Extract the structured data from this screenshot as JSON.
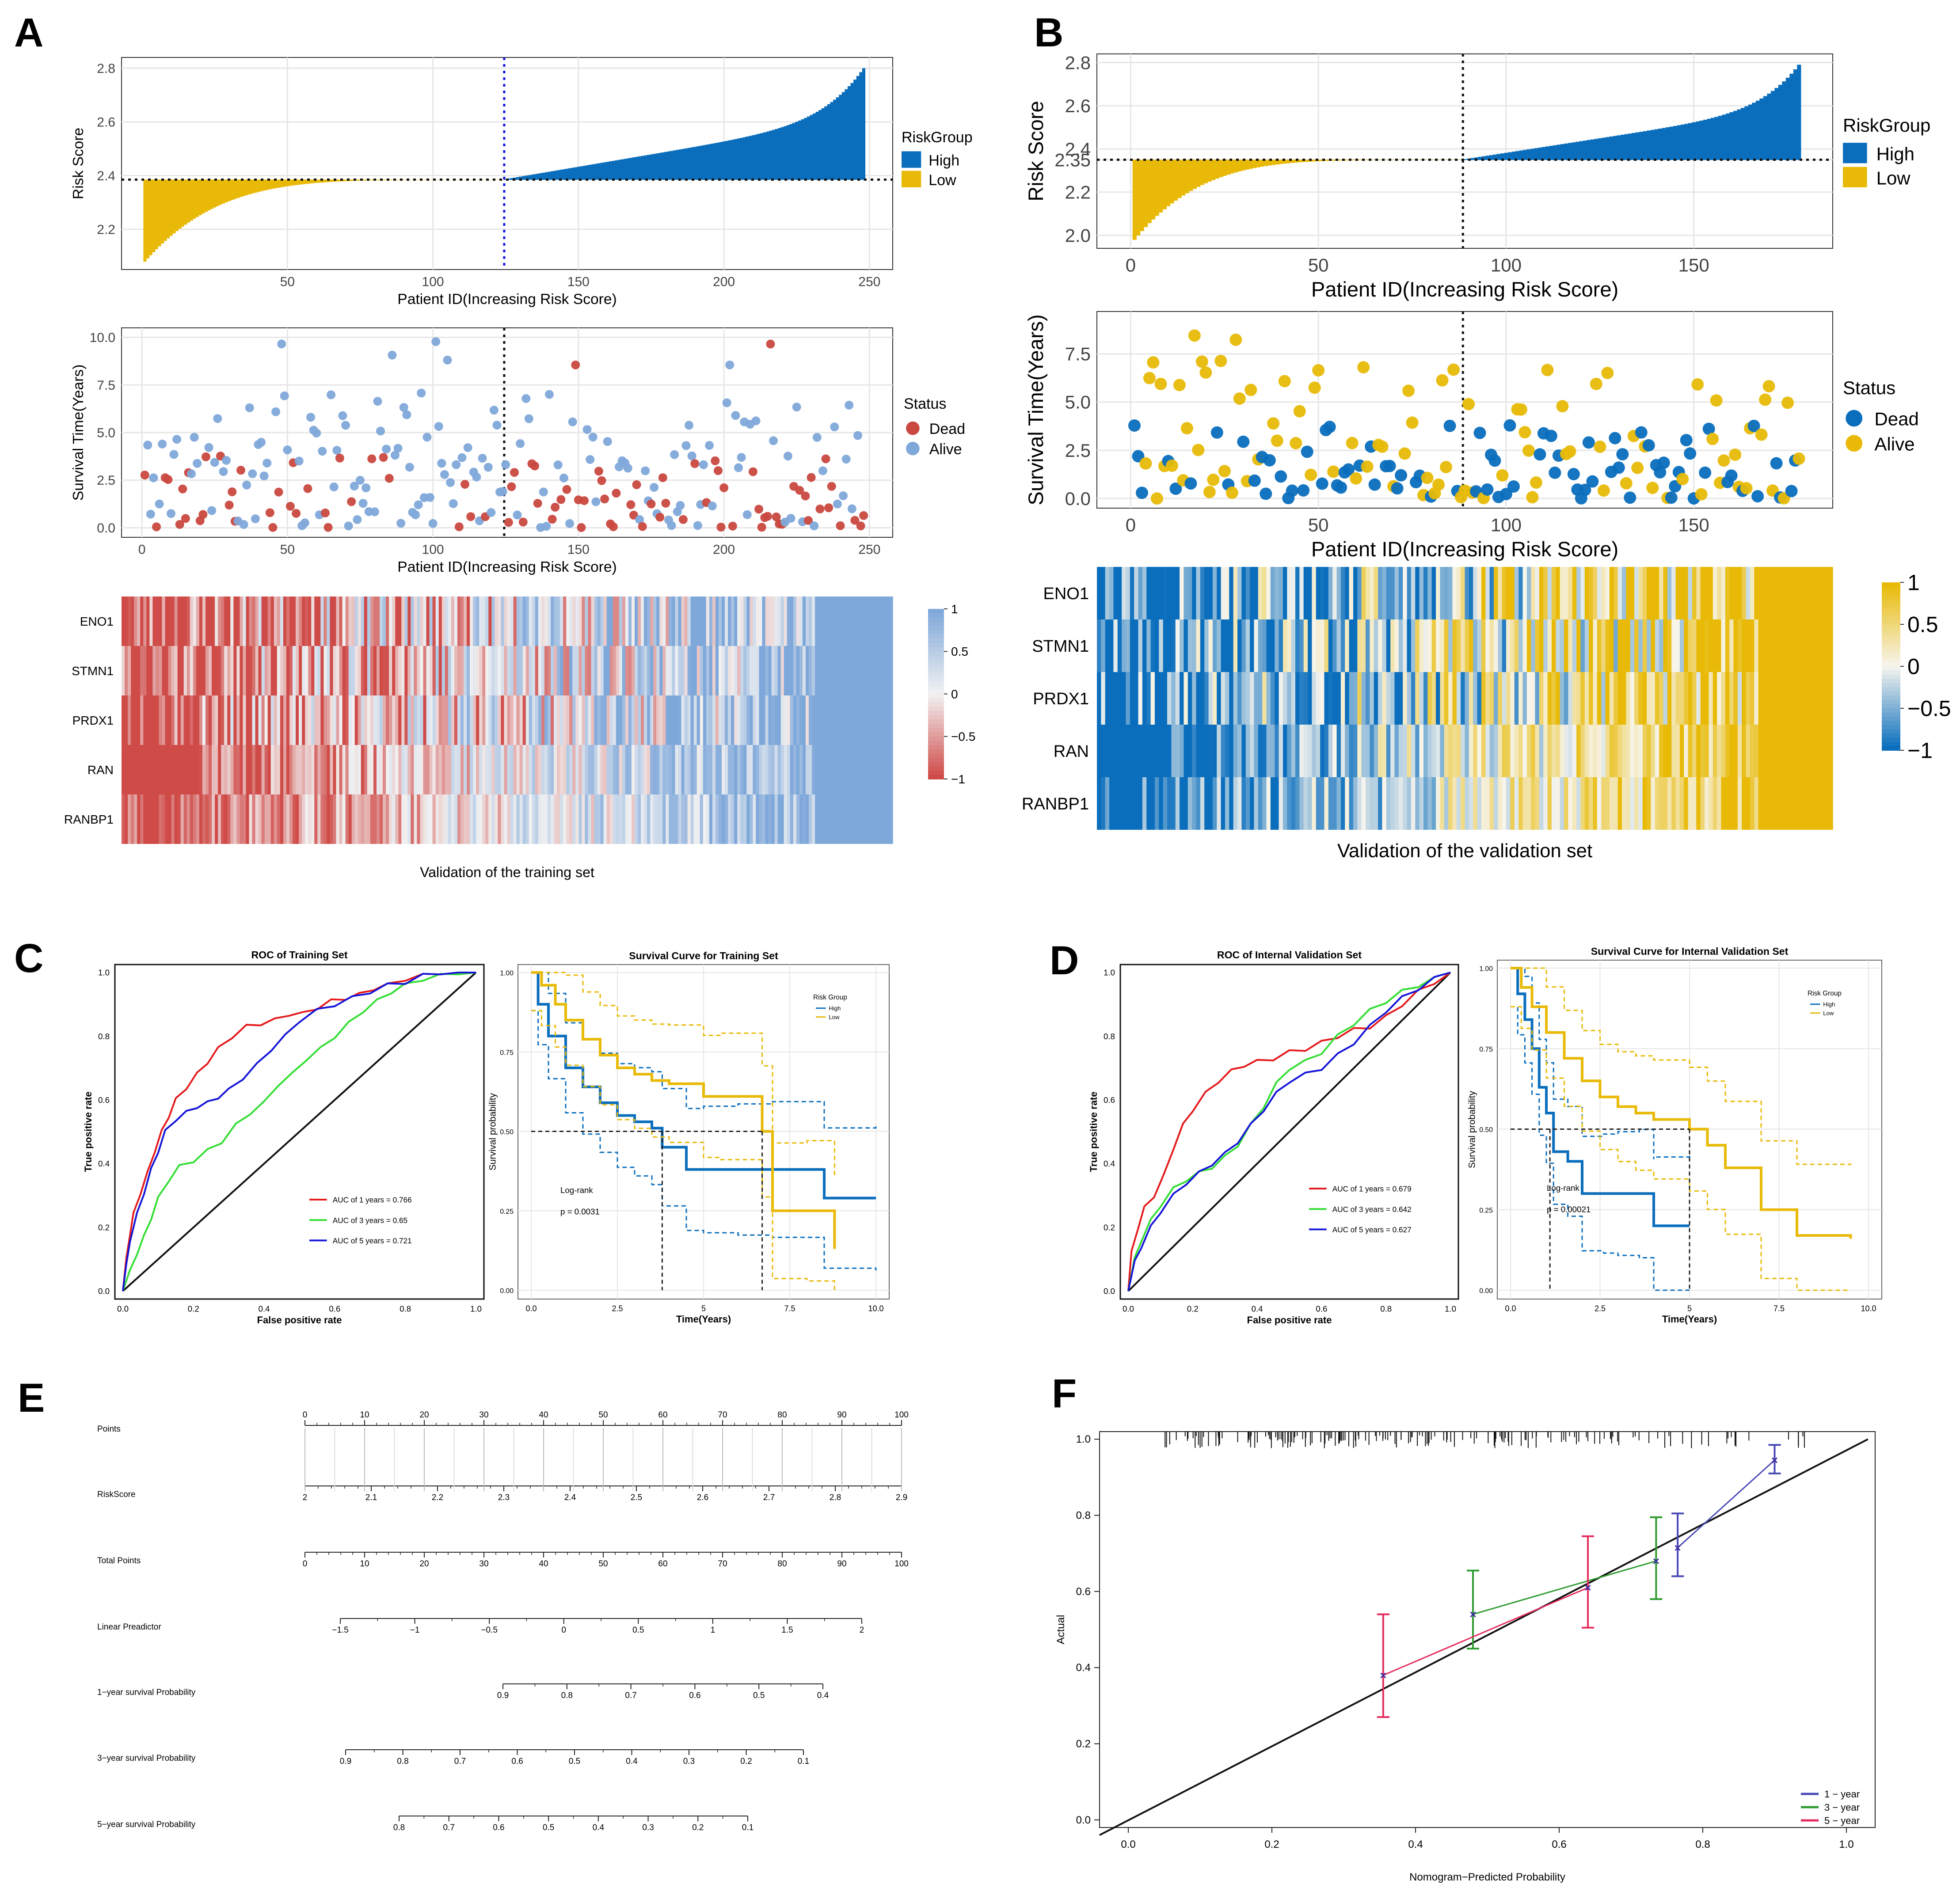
{
  "figure_labels": {
    "a": "A",
    "b": "B",
    "c": "C",
    "d": "D",
    "e": "E",
    "f": "F"
  },
  "colors": {
    "high_blue": "#0A6EBD",
    "low_gold": "#E8BA07",
    "dead_red": "#C9483F",
    "alive_blue": "#7FA8DA",
    "heat_red": "#CF4B48",
    "heat_mid": "#F2F2F2",
    "heat_blue": "#7FA8DA",
    "heat_b_blue": "#0A6EBD",
    "heat_b_mid": "#F7F5EE",
    "heat_b_gold": "#E8BA07",
    "roc_red": "#E41A1C",
    "roc_green": "#33DD33",
    "roc_blue": "#1515D8",
    "cal_blue": "#4747B5",
    "cal_green": "#2E9B2E",
    "cal_red": "#E52B5C",
    "grid": "#E6E6E6"
  },
  "chart_data": [
    {
      "id": "A-risk",
      "type": "area",
      "ylabel": "Risk Score",
      "xlabel": "Patient ID(Increasing Risk Score)",
      "n": 248,
      "xlim": [
        -7,
        258
      ],
      "ylim": [
        2.05,
        2.84
      ],
      "cutoff": 2.385,
      "split": 124,
      "min": 2.08,
      "max": 2.8,
      "xticks": [
        50,
        100,
        150,
        200,
        250
      ],
      "yticks": [
        2.2,
        2.4,
        2.6,
        2.8
      ],
      "ytick_labels": [
        "2.2",
        "2.4",
        "2.6",
        "2.8"
      ],
      "legend": {
        "title": "RiskGroup",
        "items": [
          "High",
          "Low"
        ]
      }
    },
    {
      "id": "A-surv",
      "type": "scatter",
      "ylabel": "Survival Time(Years)",
      "xlabel": "Patient ID(Increasing Risk Score)",
      "n": 248,
      "xlim": [
        -7,
        258
      ],
      "ylim": [
        -0.5,
        10.5
      ],
      "split": 124,
      "seed": 17,
      "dead_rate_low": 0.25,
      "dead_rate_high": 0.48,
      "xticks": [
        0,
        50,
        100,
        150,
        200,
        250
      ],
      "yticks": [
        0,
        2.5,
        5,
        7.5,
        10
      ],
      "ytick_labels": [
        "0.0",
        "2.5",
        "5.0",
        "7.5",
        "10.0"
      ],
      "legend": {
        "title": "Status",
        "items": [
          "Dead",
          "Alive"
        ]
      }
    },
    {
      "id": "A-heat",
      "type": "heatmap",
      "rows": [
        "ENO1",
        "STMN1",
        "PRDX1",
        "RAN",
        "RANBP1"
      ],
      "n": 248,
      "seed": 23,
      "caption": "Validation of the training set",
      "scale": [
        "1",
        "0.5",
        "0",
        "−0.5",
        "−1"
      ]
    },
    {
      "id": "B-risk",
      "type": "area",
      "ylabel": "Risk Score",
      "xlabel": "Patient ID(Increasing Risk Score)",
      "n": 178,
      "xlim": [
        -9,
        187
      ],
      "ylim": [
        1.94,
        2.84
      ],
      "cutoff": 2.35,
      "split": 88,
      "min": 1.98,
      "max": 2.79,
      "xticks": [
        0,
        50,
        100,
        150
      ],
      "yticks": [
        2.0,
        2.2,
        2.35,
        2.4,
        2.6,
        2.8
      ],
      "ytick_labels": [
        "2.0",
        "2.2",
        "2.35",
        "2.4",
        "2.6",
        "2.8"
      ],
      "legend": {
        "title": "RiskGroup",
        "items": [
          "High",
          "Low"
        ]
      }
    },
    {
      "id": "B-surv",
      "type": "scatter",
      "ylabel": "Survival Time(Years)",
      "xlabel": "Patient ID(Increasing Risk Score)",
      "n": 178,
      "xlim": [
        -9,
        187
      ],
      "ylim": [
        -0.5,
        9.7
      ],
      "split": 88,
      "seed": 41,
      "dead_rate_low": 0.35,
      "dead_rate_high": 0.55,
      "xticks": [
        0,
        50,
        100,
        150
      ],
      "yticks": [
        0,
        2.5,
        5,
        7.5
      ],
      "ytick_labels": [
        "0.0",
        "2.5",
        "5.0",
        "7.5"
      ],
      "legend": {
        "title": "Status",
        "items": [
          "Dead",
          "Alive"
        ]
      }
    },
    {
      "id": "B-heat",
      "type": "heatmap",
      "rows": [
        "ENO1",
        "STMN1",
        "PRDX1",
        "RAN",
        "RANBP1"
      ],
      "n": 178,
      "seed": 57,
      "caption": "Validation of the validation set",
      "scale": [
        "1",
        "0.5",
        "0",
        "−0.5",
        "−1"
      ]
    },
    {
      "id": "C-roc",
      "type": "line",
      "title": "ROC of Training Set",
      "xlabel": "False positive rate",
      "ylabel": "True positive rate",
      "xlim": [
        0,
        1
      ],
      "ylim": [
        0,
        1
      ],
      "ticks": [
        "0.0",
        "0.2",
        "0.4",
        "0.6",
        "0.8",
        "1.0"
      ],
      "series": [
        {
          "name": "AUC of 1 years = 0.766",
          "color": "#E41A1C",
          "x": [
            0,
            0.01,
            0.02,
            0.03,
            0.05,
            0.07,
            0.09,
            0.11,
            0.13,
            0.15,
            0.18,
            0.21,
            0.24,
            0.27,
            0.31,
            0.35,
            0.39,
            0.43,
            0.47,
            0.51,
            0.55,
            0.59,
            0.63,
            0.67,
            0.71,
            0.75,
            0.8,
            0.85,
            0.9,
            0.95,
            1
          ],
          "y": [
            0,
            0.1,
            0.18,
            0.24,
            0.31,
            0.37,
            0.44,
            0.5,
            0.55,
            0.6,
            0.64,
            0.68,
            0.72,
            0.76,
            0.8,
            0.83,
            0.84,
            0.85,
            0.87,
            0.87,
            0.89,
            0.91,
            0.92,
            0.93,
            0.95,
            0.96,
            0.98,
            0.99,
            1,
            1,
            1
          ]
        },
        {
          "name": "AUC of 3 years = 0.65",
          "color": "#33DD33",
          "x": [
            0,
            0.02,
            0.04,
            0.06,
            0.08,
            0.1,
            0.13,
            0.16,
            0.2,
            0.24,
            0.28,
            0.32,
            0.36,
            0.4,
            0.44,
            0.48,
            0.52,
            0.56,
            0.6,
            0.64,
            0.68,
            0.72,
            0.76,
            0.8,
            0.85,
            0.9,
            0.95,
            1
          ],
          "y": [
            0,
            0.06,
            0.12,
            0.17,
            0.23,
            0.29,
            0.35,
            0.39,
            0.41,
            0.44,
            0.47,
            0.52,
            0.56,
            0.59,
            0.65,
            0.68,
            0.73,
            0.76,
            0.8,
            0.84,
            0.88,
            0.91,
            0.94,
            0.96,
            0.98,
            0.99,
            1,
            1
          ]
        },
        {
          "name": "AUC of 5 years = 0.721",
          "color": "#1515D8",
          "x": [
            0,
            0.01,
            0.02,
            0.04,
            0.06,
            0.08,
            0.1,
            0.12,
            0.15,
            0.18,
            0.21,
            0.24,
            0.27,
            0.3,
            0.34,
            0.38,
            0.42,
            0.46,
            0.5,
            0.55,
            0.6,
            0.65,
            0.7,
            0.75,
            0.8,
            0.85,
            0.9,
            0.95,
            1
          ],
          "y": [
            0,
            0.08,
            0.16,
            0.24,
            0.31,
            0.38,
            0.44,
            0.5,
            0.54,
            0.56,
            0.58,
            0.59,
            0.61,
            0.63,
            0.67,
            0.71,
            0.76,
            0.8,
            0.85,
            0.88,
            0.9,
            0.92,
            0.94,
            0.96,
            0.97,
            0.99,
            1,
            1,
            1
          ]
        }
      ]
    },
    {
      "id": "C-km",
      "type": "line",
      "title": "Survival Curve for Training Set",
      "xlabel": "Time(Years)",
      "ylabel": "Survival probability",
      "xlim": [
        0,
        10
      ],
      "ylim": [
        0,
        1
      ],
      "xticks": [
        "0.0",
        "2.5",
        "5",
        "7.5",
        "10.0"
      ],
      "yticks": [
        "0.00",
        "0.25",
        "0.50",
        "0.75",
        "1.00"
      ],
      "legend": {
        "title": "Risk Group",
        "items": [
          "High",
          "Low"
        ]
      },
      "logrank": "Log-rank",
      "pvalue": "p = 0.0031",
      "median": [
        3.8,
        6.7
      ],
      "series": [
        {
          "name": "High",
          "t": [
            0,
            0.2,
            0.5,
            1,
            1.5,
            2,
            2.5,
            3,
            3.5,
            3.8,
            4.5,
            5,
            6,
            7,
            8.5,
            10
          ],
          "s": [
            1,
            0.9,
            0.8,
            0.7,
            0.64,
            0.59,
            0.55,
            0.53,
            0.51,
            0.45,
            0.38,
            0.38,
            0.38,
            0.38,
            0.29,
            0.29
          ]
        },
        {
          "name": "Low",
          "t": [
            0,
            0.3,
            0.7,
            1,
            1.5,
            2,
            2.5,
            3,
            3.5,
            4,
            5,
            5.5,
            6.7,
            7,
            8,
            8.8
          ],
          "s": [
            1,
            0.96,
            0.9,
            0.85,
            0.79,
            0.74,
            0.7,
            0.68,
            0.66,
            0.65,
            0.61,
            0.61,
            0.5,
            0.25,
            0.25,
            0.13
          ]
        }
      ]
    },
    {
      "id": "D-roc",
      "type": "line",
      "title": "ROC of Internal Validation Set",
      "xlabel": "False positive rate",
      "ylabel": "True positive rate",
      "xlim": [
        0,
        1
      ],
      "ylim": [
        0,
        1
      ],
      "ticks": [
        "0.0",
        "0.2",
        "0.4",
        "0.6",
        "0.8",
        "1.0"
      ],
      "series": [
        {
          "name": "AUC of 1 years = 0.679",
          "color": "#E41A1C",
          "x": [
            0,
            0.01,
            0.03,
            0.05,
            0.08,
            0.11,
            0.14,
            0.17,
            0.2,
            0.24,
            0.28,
            0.32,
            0.36,
            0.4,
            0.45,
            0.5,
            0.55,
            0.6,
            0.65,
            0.7,
            0.75,
            0.8,
            0.85,
            0.9,
            0.95,
            1
          ],
          "y": [
            0,
            0.12,
            0.2,
            0.26,
            0.3,
            0.36,
            0.45,
            0.52,
            0.57,
            0.62,
            0.66,
            0.69,
            0.71,
            0.72,
            0.73,
            0.75,
            0.76,
            0.78,
            0.8,
            0.82,
            0.83,
            0.86,
            0.9,
            0.94,
            0.97,
            1
          ]
        },
        {
          "name": "AUC of 3 years = 0.642",
          "color": "#33DD33",
          "x": [
            0,
            0.02,
            0.04,
            0.07,
            0.1,
            0.14,
            0.18,
            0.22,
            0.26,
            0.3,
            0.34,
            0.38,
            0.42,
            0.46,
            0.5,
            0.55,
            0.6,
            0.65,
            0.7,
            0.75,
            0.8,
            0.85,
            0.9,
            0.95,
            1
          ],
          "y": [
            0,
            0.1,
            0.16,
            0.22,
            0.27,
            0.32,
            0.35,
            0.37,
            0.39,
            0.42,
            0.46,
            0.52,
            0.58,
            0.65,
            0.7,
            0.72,
            0.75,
            0.8,
            0.84,
            0.88,
            0.91,
            0.94,
            0.96,
            0.98,
            1
          ]
        },
        {
          "name": "AUC of 5 years = 0.627",
          "color": "#1515D8",
          "x": [
            0,
            0.02,
            0.04,
            0.07,
            0.1,
            0.14,
            0.18,
            0.22,
            0.26,
            0.3,
            0.34,
            0.38,
            0.42,
            0.46,
            0.5,
            0.55,
            0.6,
            0.65,
            0.7,
            0.75,
            0.8,
            0.85,
            0.9,
            0.95,
            1
          ],
          "y": [
            0,
            0.09,
            0.14,
            0.2,
            0.25,
            0.3,
            0.34,
            0.37,
            0.4,
            0.43,
            0.47,
            0.52,
            0.57,
            0.62,
            0.66,
            0.68,
            0.7,
            0.74,
            0.78,
            0.83,
            0.88,
            0.92,
            0.95,
            0.98,
            1
          ]
        }
      ]
    },
    {
      "id": "D-km",
      "type": "line",
      "title": "Survival Curve for Internal Validation Set",
      "xlabel": "Time(Years)",
      "ylabel": "Survival probability",
      "xlim": [
        0,
        10
      ],
      "ylim": [
        0,
        1
      ],
      "xticks": [
        "0.0",
        "2.5",
        "5",
        "7.5",
        "10.0"
      ],
      "yticks": [
        "0.00",
        "0.25",
        "0.50",
        "0.75",
        "1.00"
      ],
      "legend": {
        "title": "Risk Group",
        "items": [
          "High",
          "Low"
        ]
      },
      "logrank": "Log-rank",
      "pvalue": "p = 0.00021",
      "median": [
        1.1,
        5
      ],
      "series": [
        {
          "name": "High",
          "t": [
            0,
            0.2,
            0.4,
            0.6,
            0.8,
            1,
            1.2,
            1.6,
            2,
            2.6,
            3,
            3.6,
            4,
            4,
            5
          ],
          "s": [
            1,
            0.92,
            0.84,
            0.75,
            0.63,
            0.55,
            0.43,
            0.4,
            0.3,
            0.3,
            0.3,
            0.3,
            0.2,
            0.2,
            0.2
          ]
        },
        {
          "name": "Low",
          "t": [
            0,
            0.3,
            0.6,
            1,
            1.5,
            2,
            2.5,
            3,
            3.5,
            4,
            5,
            5.5,
            6,
            7,
            8,
            9.5
          ],
          "s": [
            1,
            0.94,
            0.88,
            0.8,
            0.72,
            0.65,
            0.6,
            0.57,
            0.55,
            0.53,
            0.5,
            0.45,
            0.38,
            0.25,
            0.17,
            0.16
          ]
        }
      ]
    },
    {
      "id": "E-nomogram",
      "type": "table",
      "rows": [
        {
          "label": "Points",
          "ticks": [
            "0",
            "10",
            "20",
            "30",
            "40",
            "50",
            "60",
            "70",
            "80",
            "90",
            "100"
          ]
        },
        {
          "label": "RiskScore",
          "ticks": [
            "2",
            "2.1",
            "2.2",
            "2.3",
            "2.4",
            "2.5",
            "2.6",
            "2.7",
            "2.8",
            "2.9"
          ]
        },
        {
          "label": "Total Points",
          "ticks": [
            "0",
            "10",
            "20",
            "30",
            "40",
            "50",
            "60",
            "70",
            "80",
            "90",
            "100"
          ]
        },
        {
          "label": "Linear Preadictor",
          "ticks": [
            "−1.5",
            "−1",
            "−0.5",
            "0",
            "0.5",
            "1",
            "1.5",
            "2"
          ]
        },
        {
          "label": "1−year survival Probability",
          "ticks": [
            "0.9",
            "0.8",
            "0.7",
            "0.6",
            "0.5",
            "0.4"
          ]
        },
        {
          "label": "3−year survival Probability",
          "ticks": [
            "0.9",
            "0.8",
            "0.7",
            "0.6",
            "0.5",
            "0.4",
            "0.3",
            "0.2",
            "0.1"
          ]
        },
        {
          "label": "5−year survival Probability",
          "ticks": [
            "0.8",
            "0.7",
            "0.6",
            "0.5",
            "0.4",
            "0.3",
            "0.2",
            "0.1"
          ]
        }
      ]
    },
    {
      "id": "F-calib",
      "type": "line",
      "xlabel": "Nomogram−Predicted Probability",
      "ylabel": "Actual",
      "xlim": [
        -0.04,
        1.04
      ],
      "ylim": [
        -0.02,
        1.02
      ],
      "ticks": [
        "0.0",
        "0.2",
        "0.4",
        "0.6",
        "0.8",
        "1.0"
      ],
      "series": [
        {
          "name": "1 − year",
          "color": "#4747B5",
          "x": [
            0.765,
            0.9
          ],
          "y": [
            0.715,
            0.945
          ],
          "lo": [
            0.64,
            0.91
          ],
          "hi": [
            0.805,
            0.985
          ]
        },
        {
          "name": "3 − year",
          "color": "#2E9B2E",
          "x": [
            0.48,
            0.735
          ],
          "y": [
            0.54,
            0.68
          ],
          "lo": [
            0.45,
            0.58
          ],
          "hi": [
            0.655,
            0.795
          ]
        },
        {
          "name": "5 − year",
          "color": "#E52B5C",
          "x": [
            0.355,
            0.64
          ],
          "y": [
            0.38,
            0.61
          ],
          "lo": [
            0.27,
            0.505
          ],
          "hi": [
            0.54,
            0.745
          ]
        }
      ]
    }
  ]
}
